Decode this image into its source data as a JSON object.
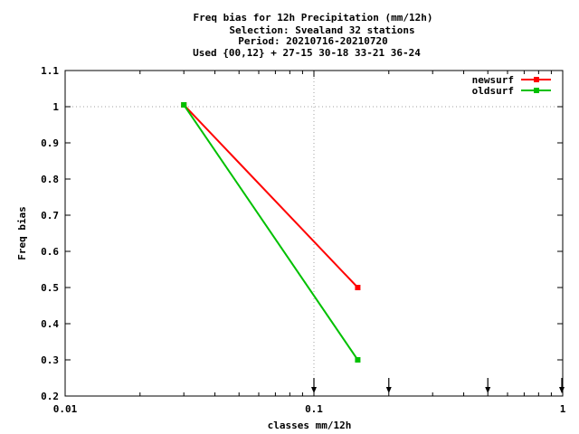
{
  "chart_data": {
    "type": "line",
    "title_lines": [
      "Freq bias  for 12h Precipitation (mm/12h)",
      "Selection: Svealand     32 stations",
      "Period: 20210716-20210720",
      "Used {00,12} + 27-15 30-18 33-21 36-24"
    ],
    "xlabel": "classes mm/12h",
    "ylabel": "Freq bias",
    "x_scale": "log",
    "xlim": [
      0.01,
      1
    ],
    "ylim": [
      0.2,
      1.1
    ],
    "x_ticks": [
      0.01,
      0.1,
      1
    ],
    "x_tick_labels": [
      "0.01",
      "0.1",
      "1"
    ],
    "y_ticks": [
      0.2,
      0.3,
      0.4,
      0.5,
      0.6,
      0.7,
      0.8,
      0.9,
      1.0,
      1.1
    ],
    "y_tick_labels": [
      "0.2",
      "0.3",
      "0.4",
      "0.5",
      "0.6",
      "0.7",
      "0.8",
      "0.9",
      "1",
      "1.1"
    ],
    "grid_lines_x": [
      0.1
    ],
    "grid_lines_y": [
      1.0
    ],
    "class_arrows": [
      0.1,
      0.2,
      0.5,
      1.0
    ],
    "legend_position": "top-right",
    "series": [
      {
        "name": "newsurf",
        "color": "#ff0000",
        "x": [
          0.03,
          0.15
        ],
        "y": [
          1.005,
          0.5
        ]
      },
      {
        "name": "oldsurf",
        "color": "#00c000",
        "x": [
          0.03,
          0.15
        ],
        "y": [
          1.005,
          0.3
        ]
      }
    ]
  }
}
